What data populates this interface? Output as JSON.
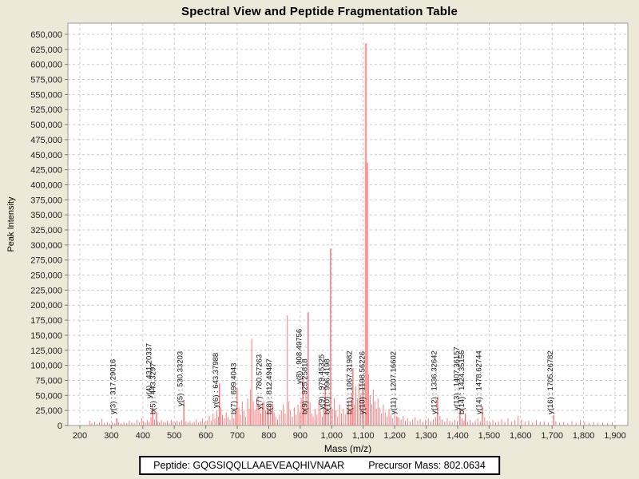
{
  "title": "Spectral View and Peptide Fragmentation Table",
  "footer": {
    "peptide_label": "Peptide:",
    "peptide_sequence": "GQGSIQQLLAAEVEAQHIVNAAR",
    "precursor_label": "Precursor Mass:",
    "precursor_mass": "802.0634"
  },
  "colors": {
    "background": "#ece9d8",
    "plot_background": "#ffffff",
    "peak": "#ff7d7d",
    "peak_labeled": "#ff6f6f",
    "peak_major": "#ff9a9a",
    "grid": "#cccccc",
    "axis": "#9a9a9a",
    "tick_text": "#222222",
    "label_text": "#101010"
  },
  "chart_data": {
    "type": "bar",
    "title": "Spectral View and Peptide Fragmentation Table",
    "xlabel": "Mass (m/z)",
    "ylabel": "Peak Intensity",
    "x_axis": {
      "min": 200,
      "max": 1900,
      "step": 100
    },
    "y_axis": {
      "min": 0,
      "max": 650000,
      "step": 25000
    },
    "grid": "dashed",
    "legend": "none",
    "labeled_peaks": [
      {
        "ion": "y(3)",
        "mz": 317.29016,
        "intensity": 12000,
        "label": "y(3) : 317.29016",
        "label_dy": 0
      },
      {
        "ion": "y(4)",
        "mz": 431.20337,
        "intensity": 30000,
        "label": "y(4) : 431.20337",
        "label_dy": -20
      },
      {
        "ion": "b(5)",
        "mz": 443.3297,
        "intensity": 22000,
        "label": "b(5) : 443.3297",
        "label_dy": 0
      },
      {
        "ion": "y(5)",
        "mz": 530.33203,
        "intensity": 42000,
        "label": "y(5) : 530.33203",
        "label_dy": -10
      },
      {
        "ion": "y(6)",
        "mz": 643.37988,
        "intensity": 70000,
        "label": "y(6) : 643.37988",
        "label_dy": -8
      },
      {
        "ion": "b(7)",
        "mz": 699.4043,
        "intensity": 62000,
        "label": "b(7) : 699.4043",
        "label_dy": 0
      },
      {
        "ion": "y(7)",
        "mz": 780.57263,
        "intensity": 38000,
        "label": "y(7) : 780.57263",
        "label_dy": -6
      },
      {
        "ion": "b(8)",
        "mz": 812.49487,
        "intensity": 36000,
        "label": "b(8) : 812.49487",
        "label_dy": 0
      },
      {
        "ion": "y(8)",
        "mz": 908.49756,
        "intensity": 80000,
        "label": "y(8) : 908.49756",
        "label_dy": -38
      },
      {
        "ion": "b(9)",
        "mz": 925.25818,
        "intensity": 188000,
        "label": "b(9) : 925.25818",
        "label_dy": 0
      },
      {
        "ion": "y(9)",
        "mz": 979.45325,
        "intensity": 65000,
        "label": "y(9) : 979.45325",
        "label_dy": -6
      },
      {
        "ion": "b(10)",
        "mz": 996.4198,
        "intensity": 294000,
        "label": "b(10) : 996.4198",
        "label_dy": 0
      },
      {
        "ion": "b(11)",
        "mz": 1067.31982,
        "intensity": 95000,
        "label": "b(11) : 1067.31982",
        "label_dy": 0
      },
      {
        "ion": "y(10)",
        "mz": 1108.56226,
        "intensity": 635000,
        "label": "y(10) : 1108.56226",
        "label_dy": 0
      },
      {
        "ion": "y(11)",
        "mz": 1207.16602,
        "intensity": 15000,
        "label": "y(11) : 1207.16602",
        "label_dy": 0
      },
      {
        "ion": "y(12)",
        "mz": 1336.32642,
        "intensity": 48000,
        "label": "y(12) : 1336.32642",
        "label_dy": 0
      },
      {
        "ion": "y(13)",
        "mz": 1407.36157,
        "intensity": 28000,
        "label": "y(13) : 1407.36157",
        "label_dy": -5
      },
      {
        "ion": "b(14)",
        "mz": 1424.35156,
        "intensity": 20000,
        "label": "b(14) : 1424.35156",
        "label_dy": 0
      },
      {
        "ion": "y(14)",
        "mz": 1478.62744,
        "intensity": 32000,
        "label": "y(14) : 1478.62744",
        "label_dy": 0
      },
      {
        "ion": "y(16)",
        "mz": 1705.26782,
        "intensity": 17000,
        "label": "y(16) : 1705.26782",
        "label_dy": 0
      }
    ],
    "unlabeled_peaks": [
      [
        231,
        8000
      ],
      [
        238,
        4000
      ],
      [
        247,
        6000
      ],
      [
        255,
        3000
      ],
      [
        262,
        5000
      ],
      [
        270,
        11000
      ],
      [
        278,
        4000
      ],
      [
        287,
        6000
      ],
      [
        295,
        3500
      ],
      [
        303,
        5000
      ],
      [
        311,
        4000
      ],
      [
        323,
        5000
      ],
      [
        331,
        3500
      ],
      [
        340,
        6000
      ],
      [
        349,
        4000
      ],
      [
        357,
        8000
      ],
      [
        365,
        5000
      ],
      [
        373,
        4000
      ],
      [
        381,
        9000
      ],
      [
        389,
        5000
      ],
      [
        396,
        12000
      ],
      [
        402,
        7000
      ],
      [
        408,
        5000
      ],
      [
        414,
        9000
      ],
      [
        420,
        6000
      ],
      [
        426,
        14000
      ],
      [
        437,
        10000
      ],
      [
        448,
        7000
      ],
      [
        453,
        5000
      ],
      [
        459,
        9000
      ],
      [
        466,
        6000
      ],
      [
        472,
        5000
      ],
      [
        478,
        8000
      ],
      [
        484,
        4000
      ],
      [
        490,
        10000
      ],
      [
        496,
        6000
      ],
      [
        503,
        5000
      ],
      [
        509,
        8000
      ],
      [
        516,
        6000
      ],
      [
        523,
        9000
      ],
      [
        537,
        7000
      ],
      [
        543,
        5000
      ],
      [
        550,
        8000
      ],
      [
        557,
        4500
      ],
      [
        563,
        6000
      ],
      [
        570,
        10000
      ],
      [
        577,
        5000
      ],
      [
        584,
        7000
      ],
      [
        590,
        12000
      ],
      [
        597,
        6000
      ],
      [
        604,
        9000
      ],
      [
        611,
        16000
      ],
      [
        617,
        8000
      ],
      [
        623,
        20000
      ],
      [
        629,
        12000
      ],
      [
        635,
        25000
      ],
      [
        640,
        15000
      ],
      [
        648,
        30000
      ],
      [
        653,
        18000
      ],
      [
        659,
        12000
      ],
      [
        665,
        22000
      ],
      [
        671,
        14000
      ],
      [
        677,
        10000
      ],
      [
        683,
        18000
      ],
      [
        689,
        12000
      ],
      [
        694,
        25000
      ],
      [
        705,
        30000
      ],
      [
        710,
        18000
      ],
      [
        716,
        40000
      ],
      [
        721,
        25000
      ],
      [
        727,
        15000
      ],
      [
        733,
        45000
      ],
      [
        738,
        28000
      ],
      [
        742,
        60000
      ],
      [
        746,
        144000
      ],
      [
        751,
        40000
      ],
      [
        756,
        25000
      ],
      [
        761,
        35000
      ],
      [
        766,
        50000
      ],
      [
        771,
        30000
      ],
      [
        775,
        20000
      ],
      [
        785,
        40000
      ],
      [
        790,
        25000
      ],
      [
        795,
        30000
      ],
      [
        800,
        20000
      ],
      [
        805,
        35000
      ],
      [
        817,
        22000
      ],
      [
        822,
        15000
      ],
      [
        828,
        10000
      ],
      [
        834,
        18000
      ],
      [
        840,
        25000
      ],
      [
        846,
        35000
      ],
      [
        852,
        20000
      ],
      [
        859,
        183000
      ],
      [
        864,
        40000
      ],
      [
        869,
        25000
      ],
      [
        875,
        15000
      ],
      [
        881,
        30000
      ],
      [
        887,
        18000
      ],
      [
        893,
        35000
      ],
      [
        899,
        22000
      ],
      [
        903,
        45000
      ],
      [
        913,
        30000
      ],
      [
        918,
        55000
      ],
      [
        931,
        38000
      ],
      [
        936,
        20000
      ],
      [
        941,
        15000
      ],
      [
        947,
        28000
      ],
      [
        953,
        18000
      ],
      [
        959,
        40000
      ],
      [
        964,
        25000
      ],
      [
        970,
        15000
      ],
      [
        975,
        30000
      ],
      [
        985,
        35000
      ],
      [
        990,
        20000
      ],
      [
        1002,
        28000
      ],
      [
        1008,
        45000
      ],
      [
        1013,
        25000
      ],
      [
        1019,
        15000
      ],
      [
        1025,
        35000
      ],
      [
        1031,
        20000
      ],
      [
        1037,
        28000
      ],
      [
        1043,
        18000
      ],
      [
        1049,
        30000
      ],
      [
        1054,
        40000
      ],
      [
        1059,
        25000
      ],
      [
        1063,
        55000
      ],
      [
        1072,
        35000
      ],
      [
        1077,
        65000
      ],
      [
        1082,
        45000
      ],
      [
        1087,
        70000
      ],
      [
        1092,
        50000
      ],
      [
        1097,
        80000
      ],
      [
        1102,
        60000
      ],
      [
        1113,
        437000
      ],
      [
        1117,
        85000
      ],
      [
        1122,
        50000
      ],
      [
        1127,
        35000
      ],
      [
        1132,
        60000
      ],
      [
        1137,
        40000
      ],
      [
        1142,
        28000
      ],
      [
        1147,
        45000
      ],
      [
        1152,
        30000
      ],
      [
        1158,
        20000
      ],
      [
        1164,
        35000
      ],
      [
        1170,
        22000
      ],
      [
        1176,
        15000
      ],
      [
        1182,
        28000
      ],
      [
        1188,
        18000
      ],
      [
        1194,
        12000
      ],
      [
        1200,
        20000
      ],
      [
        1213,
        14000
      ],
      [
        1220,
        10000
      ],
      [
        1227,
        16000
      ],
      [
        1234,
        8000
      ],
      [
        1241,
        12000
      ],
      [
        1249,
        7000
      ],
      [
        1257,
        10000
      ],
      [
        1265,
        14000
      ],
      [
        1273,
        8000
      ],
      [
        1281,
        11000
      ],
      [
        1290,
        6000
      ],
      [
        1298,
        9000
      ],
      [
        1307,
        12000
      ],
      [
        1315,
        7000
      ],
      [
        1323,
        10000
      ],
      [
        1330,
        14000
      ],
      [
        1344,
        16000
      ],
      [
        1351,
        10000
      ],
      [
        1359,
        7000
      ],
      [
        1367,
        12000
      ],
      [
        1375,
        8000
      ],
      [
        1383,
        6000
      ],
      [
        1391,
        10000
      ],
      [
        1399,
        7000
      ],
      [
        1414,
        12000
      ],
      [
        1420,
        8000
      ],
      [
        1432,
        6000
      ],
      [
        1440,
        9000
      ],
      [
        1448,
        5000
      ],
      [
        1456,
        8000
      ],
      [
        1464,
        12000
      ],
      [
        1472,
        7000
      ],
      [
        1486,
        14000
      ],
      [
        1494,
        8000
      ],
      [
        1503,
        6000
      ],
      [
        1512,
        9000
      ],
      [
        1521,
        5000
      ],
      [
        1530,
        7000
      ],
      [
        1540,
        10000
      ],
      [
        1550,
        6000
      ],
      [
        1560,
        12000
      ],
      [
        1571,
        7000
      ],
      [
        1582,
        9000
      ],
      [
        1592,
        16000
      ],
      [
        1603,
        10000
      ],
      [
        1614,
        6000
      ],
      [
        1626,
        8000
      ],
      [
        1638,
        5000
      ],
      [
        1650,
        9000
      ],
      [
        1662,
        6000
      ],
      [
        1675,
        7000
      ],
      [
        1688,
        5000
      ],
      [
        1712,
        7000
      ],
      [
        1724,
        5000
      ],
      [
        1737,
        6000
      ],
      [
        1750,
        4000
      ],
      [
        1763,
        7000
      ],
      [
        1776,
        5000
      ],
      [
        1790,
        9000
      ],
      [
        1803,
        6000
      ],
      [
        1817,
        4000
      ],
      [
        1832,
        6000
      ],
      [
        1846,
        4000
      ],
      [
        1861,
        5000
      ],
      [
        1876,
        4000
      ],
      [
        1891,
        5000
      ]
    ]
  }
}
